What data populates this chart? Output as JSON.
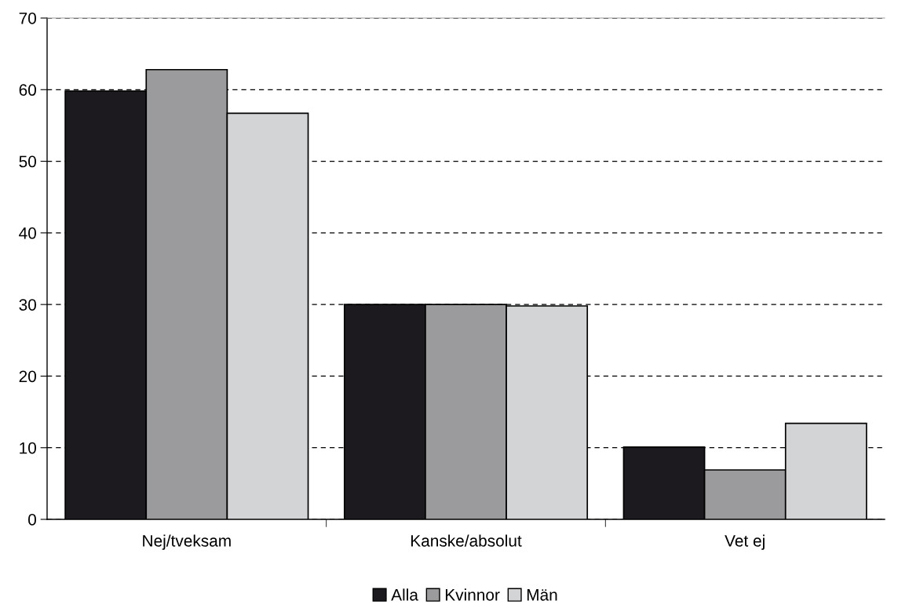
{
  "chart_data": {
    "type": "bar",
    "categories": [
      "Nej/tveksam",
      "Kanske/absolut",
      "Vet ej"
    ],
    "series": [
      {
        "name": "Alla",
        "color": "#1c1a1f",
        "values": [
          59.8,
          30.0,
          10.1
        ]
      },
      {
        "name": "Kvinnor",
        "color": "#9b9b9d",
        "values": [
          62.8,
          30.0,
          6.9
        ]
      },
      {
        "name": "Män",
        "color": "#d3d4d6",
        "values": [
          56.7,
          29.8,
          13.4
        ]
      }
    ],
    "ylim": [
      0,
      70
    ],
    "yticks": [
      0,
      10,
      20,
      30,
      40,
      50,
      60,
      70
    ],
    "grid": "y",
    "legend": "bottom"
  }
}
